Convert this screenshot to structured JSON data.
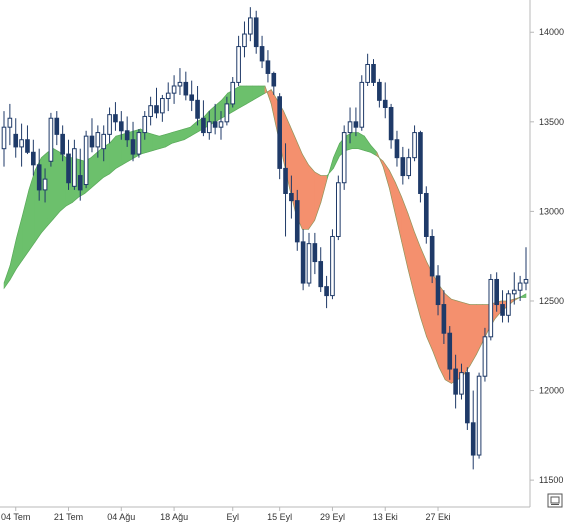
{
  "chart_data": {
    "type": "candlestick",
    "x_labels": [
      "04 Tem",
      "21 Tem",
      "04 Ağu",
      "18 Ağu",
      "Eyl",
      "15 Eyl",
      "29 Eyl",
      "13 Eki",
      "27 Eki"
    ],
    "y_ticks": [
      "14000",
      "13500",
      "13000",
      "12500",
      "12000",
      "11500"
    ],
    "y_tick_values": [
      14000,
      13500,
      13000,
      12500,
      12000,
      11500
    ],
    "ylim": [
      11350,
      14180
    ],
    "colors": {
      "up_candle_fill": "#ffffff",
      "up_candle_stroke": "#1f3a68",
      "down_candle": "#1f3a68",
      "cloud_up": "#6cc06c",
      "cloud_down": "#f4906e",
      "axis": "#b8b8b8"
    },
    "cloud": {
      "line_a": [
        12600,
        12700,
        12850,
        12980,
        13120,
        13230,
        13300,
        13330,
        13350,
        13330,
        13300,
        13300,
        13290,
        13280,
        13300,
        13330,
        13360,
        13380,
        13420,
        13430,
        13440,
        13450,
        13460,
        13440,
        13430,
        13420,
        13430,
        13440,
        13450,
        13460,
        13470,
        13500,
        13520,
        13560,
        13590,
        13620,
        13660,
        13680,
        13700,
        13700,
        13700,
        13700,
        13700,
        13600,
        13440,
        13280,
        13120,
        12980,
        12900,
        12900,
        12950,
        13050,
        13180,
        13300,
        13380,
        13420,
        13440,
        13440,
        13420,
        13370,
        13330,
        13250,
        13130,
        12980,
        12830,
        12680,
        12540,
        12410,
        12300,
        12220,
        12130,
        12060,
        12040,
        12060,
        12090,
        12140,
        12200,
        12270,
        12340,
        12400,
        12440,
        12470,
        12500,
        12520,
        12540
      ],
      "line_b": [
        12570,
        12620,
        12680,
        12730,
        12780,
        12830,
        12880,
        12920,
        12960,
        13000,
        13030,
        13050,
        13080,
        13100,
        13130,
        13160,
        13190,
        13210,
        13240,
        13260,
        13280,
        13300,
        13320,
        13330,
        13340,
        13350,
        13360,
        13380,
        13390,
        13400,
        13420,
        13440,
        13460,
        13480,
        13500,
        13520,
        13540,
        13560,
        13580,
        13600,
        13620,
        13640,
        13660,
        13680,
        13620,
        13560,
        13480,
        13400,
        13320,
        13260,
        13220,
        13200,
        13200,
        13240,
        13310,
        13340,
        13350,
        13350,
        13340,
        13330,
        13310,
        13280,
        13230,
        13160,
        13080,
        12990,
        12890,
        12800,
        12720,
        12650,
        12590,
        12540,
        12510,
        12500,
        12490,
        12480,
        12480,
        12480,
        12480,
        12490,
        12500,
        12500,
        12510,
        12520,
        12520
      ]
    },
    "candles": [
      {
        "o": 13350,
        "h": 13560,
        "l": 13250,
        "c": 13470
      },
      {
        "o": 13470,
        "h": 13600,
        "l": 13370,
        "c": 13520
      },
      {
        "o": 13430,
        "h": 13520,
        "l": 13300,
        "c": 13360
      },
      {
        "o": 13360,
        "h": 13490,
        "l": 13250,
        "c": 13400
      },
      {
        "o": 13400,
        "h": 13480,
        "l": 13320,
        "c": 13330
      },
      {
        "o": 13330,
        "h": 13400,
        "l": 13200,
        "c": 13260
      },
      {
        "o": 13260,
        "h": 13350,
        "l": 13060,
        "c": 13120
      },
      {
        "o": 13120,
        "h": 13240,
        "l": 13050,
        "c": 13180
      },
      {
        "o": 13280,
        "h": 13550,
        "l": 13250,
        "c": 13520
      },
      {
        "o": 13520,
        "h": 13560,
        "l": 13370,
        "c": 13430
      },
      {
        "o": 13430,
        "h": 13480,
        "l": 13280,
        "c": 13320
      },
      {
        "o": 13320,
        "h": 13400,
        "l": 13120,
        "c": 13160
      },
      {
        "o": 13140,
        "h": 13400,
        "l": 13120,
        "c": 13350
      },
      {
        "o": 13200,
        "h": 13350,
        "l": 13060,
        "c": 13120
      },
      {
        "o": 13150,
        "h": 13450,
        "l": 13130,
        "c": 13420
      },
      {
        "o": 13420,
        "h": 13520,
        "l": 13330,
        "c": 13360
      },
      {
        "o": 13360,
        "h": 13480,
        "l": 13300,
        "c": 13440
      },
      {
        "o": 13350,
        "h": 13480,
        "l": 13280,
        "c": 13430
      },
      {
        "o": 13430,
        "h": 13580,
        "l": 13380,
        "c": 13540
      },
      {
        "o": 13540,
        "h": 13610,
        "l": 13450,
        "c": 13500
      },
      {
        "o": 13500,
        "h": 13560,
        "l": 13400,
        "c": 13450
      },
      {
        "o": 13450,
        "h": 13530,
        "l": 13360,
        "c": 13400
      },
      {
        "o": 13400,
        "h": 13500,
        "l": 13280,
        "c": 13320
      },
      {
        "o": 13320,
        "h": 13460,
        "l": 13300,
        "c": 13440
      },
      {
        "o": 13440,
        "h": 13560,
        "l": 13400,
        "c": 13530
      },
      {
        "o": 13530,
        "h": 13640,
        "l": 13480,
        "c": 13590
      },
      {
        "o": 13590,
        "h": 13690,
        "l": 13520,
        "c": 13550
      },
      {
        "o": 13550,
        "h": 13650,
        "l": 13500,
        "c": 13630
      },
      {
        "o": 13630,
        "h": 13720,
        "l": 13560,
        "c": 13660
      },
      {
        "o": 13660,
        "h": 13760,
        "l": 13600,
        "c": 13700
      },
      {
        "o": 13700,
        "h": 13800,
        "l": 13650,
        "c": 13720
      },
      {
        "o": 13720,
        "h": 13780,
        "l": 13620,
        "c": 13650
      },
      {
        "o": 13650,
        "h": 13730,
        "l": 13560,
        "c": 13620
      },
      {
        "o": 13620,
        "h": 13700,
        "l": 13480,
        "c": 13520
      },
      {
        "o": 13520,
        "h": 13620,
        "l": 13420,
        "c": 13440
      },
      {
        "o": 13440,
        "h": 13560,
        "l": 13400,
        "c": 13500
      },
      {
        "o": 13500,
        "h": 13600,
        "l": 13430,
        "c": 13470
      },
      {
        "o": 13470,
        "h": 13560,
        "l": 13400,
        "c": 13500
      },
      {
        "o": 13500,
        "h": 13640,
        "l": 13480,
        "c": 13600
      },
      {
        "o": 13600,
        "h": 13750,
        "l": 13580,
        "c": 13720
      },
      {
        "o": 13720,
        "h": 13980,
        "l": 13700,
        "c": 13920
      },
      {
        "o": 13920,
        "h": 14060,
        "l": 13860,
        "c": 13990
      },
      {
        "o": 13990,
        "h": 14140,
        "l": 13950,
        "c": 14080
      },
      {
        "o": 14080,
        "h": 14120,
        "l": 13880,
        "c": 13920
      },
      {
        "o": 13920,
        "h": 13980,
        "l": 13800,
        "c": 13840
      },
      {
        "o": 13840,
        "h": 13900,
        "l": 13720,
        "c": 13770
      },
      {
        "o": 13770,
        "h": 13780,
        "l": 13650,
        "c": 13700
      },
      {
        "o": 13640,
        "h": 13660,
        "l": 13180,
        "c": 13240
      },
      {
        "o": 13240,
        "h": 13380,
        "l": 12860,
        "c": 13100
      },
      {
        "o": 13100,
        "h": 13200,
        "l": 12960,
        "c": 13060
      },
      {
        "o": 13060,
        "h": 13120,
        "l": 12780,
        "c": 12830
      },
      {
        "o": 12830,
        "h": 12900,
        "l": 12560,
        "c": 12600
      },
      {
        "o": 12600,
        "h": 12880,
        "l": 12580,
        "c": 12820
      },
      {
        "o": 12820,
        "h": 12880,
        "l": 12650,
        "c": 12720
      },
      {
        "o": 12720,
        "h": 12800,
        "l": 12550,
        "c": 12580
      },
      {
        "o": 12580,
        "h": 12640,
        "l": 12460,
        "c": 12530
      },
      {
        "o": 12530,
        "h": 12900,
        "l": 12510,
        "c": 12860
      },
      {
        "o": 12860,
        "h": 13200,
        "l": 12840,
        "c": 13160
      },
      {
        "o": 13160,
        "h": 13480,
        "l": 13120,
        "c": 13440
      },
      {
        "o": 13440,
        "h": 13580,
        "l": 13380,
        "c": 13500
      },
      {
        "o": 13500,
        "h": 13580,
        "l": 13420,
        "c": 13470
      },
      {
        "o": 13470,
        "h": 13760,
        "l": 13450,
        "c": 13720
      },
      {
        "o": 13720,
        "h": 13880,
        "l": 13700,
        "c": 13820
      },
      {
        "o": 13820,
        "h": 13850,
        "l": 13700,
        "c": 13720
      },
      {
        "o": 13720,
        "h": 13740,
        "l": 13580,
        "c": 13620
      },
      {
        "o": 13620,
        "h": 13720,
        "l": 13520,
        "c": 13580
      },
      {
        "o": 13580,
        "h": 13600,
        "l": 13350,
        "c": 13400
      },
      {
        "o": 13400,
        "h": 13450,
        "l": 13250,
        "c": 13300
      },
      {
        "o": 13300,
        "h": 13360,
        "l": 13150,
        "c": 13200
      },
      {
        "o": 13200,
        "h": 13350,
        "l": 13180,
        "c": 13300
      },
      {
        "o": 13300,
        "h": 13480,
        "l": 13280,
        "c": 13440
      },
      {
        "o": 13440,
        "h": 13450,
        "l": 13050,
        "c": 13100
      },
      {
        "o": 13100,
        "h": 13140,
        "l": 12820,
        "c": 12860
      },
      {
        "o": 12860,
        "h": 12900,
        "l": 12600,
        "c": 12640
      },
      {
        "o": 12640,
        "h": 12700,
        "l": 12420,
        "c": 12480
      },
      {
        "o": 12480,
        "h": 12560,
        "l": 12260,
        "c": 12320
      },
      {
        "o": 12320,
        "h": 12360,
        "l": 12060,
        "c": 12120
      },
      {
        "o": 12120,
        "h": 12200,
        "l": 11900,
        "c": 11980
      },
      {
        "o": 11980,
        "h": 12150,
        "l": 11950,
        "c": 12100
      },
      {
        "o": 12100,
        "h": 12130,
        "l": 11780,
        "c": 11820
      },
      {
        "o": 11820,
        "h": 12000,
        "l": 11560,
        "c": 11640
      },
      {
        "o": 11640,
        "h": 12100,
        "l": 11620,
        "c": 12080
      },
      {
        "o": 12080,
        "h": 12350,
        "l": 12050,
        "c": 12300
      },
      {
        "o": 12300,
        "h": 12650,
        "l": 12280,
        "c": 12620
      },
      {
        "o": 12620,
        "h": 12660,
        "l": 12440,
        "c": 12480
      },
      {
        "o": 12480,
        "h": 12560,
        "l": 12380,
        "c": 12420
      },
      {
        "o": 12420,
        "h": 12560,
        "l": 12380,
        "c": 12540
      },
      {
        "o": 12540,
        "h": 12660,
        "l": 12480,
        "c": 12560
      },
      {
        "o": 12560,
        "h": 12640,
        "l": 12500,
        "c": 12600
      },
      {
        "o": 12600,
        "h": 12800,
        "l": 12560,
        "c": 12620
      }
    ]
  },
  "chart_icon": "chart-settings-icon"
}
